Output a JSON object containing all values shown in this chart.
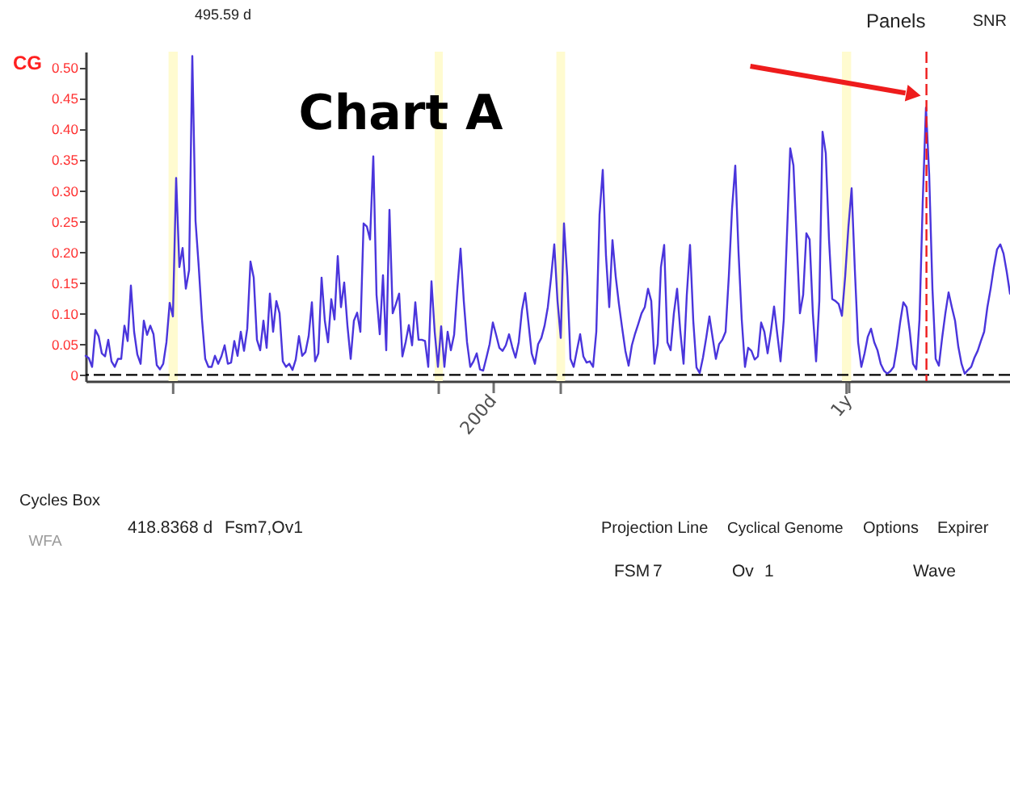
{
  "chart_data": {
    "type": "line",
    "title": "Chart A",
    "categories": [
      null,
      null,
      null,
      null,
      null,
      null,
      null,
      null,
      null,
      null,
      null,
      null,
      null,
      null,
      null,
      null,
      null,
      null,
      null,
      null,
      null,
      null,
      null,
      null,
      null,
      null,
      null,
      null,
      null,
      null,
      null,
      null,
      null,
      null,
      null,
      null,
      null,
      null,
      null,
      null,
      null,
      null,
      null,
      null,
      null,
      null,
      null,
      null,
      null,
      null,
      null,
      null,
      null,
      null,
      null,
      null,
      null,
      null,
      null,
      null,
      null,
      null,
      null,
      null,
      null,
      null,
      null,
      null,
      null,
      null,
      null,
      null,
      null,
      null,
      null,
      null,
      null,
      null,
      null,
      null,
      null,
      null,
      null,
      null,
      null,
      null,
      null,
      null,
      null,
      null,
      null,
      null,
      null,
      null,
      null,
      null,
      null,
      null,
      null,
      null,
      null,
      null,
      null,
      null,
      null,
      null,
      null,
      null,
      null,
      null,
      null,
      null,
      null,
      null,
      null,
      null,
      null,
      null,
      null,
      null,
      null,
      null,
      null,
      null,
      null,
      null,
      "200d",
      null,
      null,
      null,
      null,
      null,
      null,
      null,
      null,
      null,
      null,
      null,
      null,
      null,
      null,
      null,
      null,
      null,
      null,
      null,
      null,
      null,
      null,
      null,
      null,
      null,
      null,
      null,
      null,
      null,
      null,
      null,
      null,
      null,
      null,
      null,
      null,
      null,
      null,
      null,
      null,
      null,
      null,
      null,
      null,
      null,
      null,
      null,
      null,
      null,
      null,
      null,
      null,
      null,
      null,
      null,
      null,
      null,
      null,
      null,
      null,
      null,
      null,
      null,
      null,
      null,
      null,
      null,
      null,
      null,
      null,
      null,
      null,
      null,
      null,
      null,
      null,
      null,
      null,
      null,
      null,
      null,
      null,
      null,
      null,
      null,
      null,
      null,
      null,
      null,
      null,
      null,
      null,
      null,
      null,
      null,
      null,
      null,
      null,
      null,
      null,
      null,
      null,
      null,
      null,
      null,
      null,
      null,
      null,
      null,
      "1y",
      null,
      null,
      null,
      null,
      null,
      null,
      null,
      null,
      null,
      null,
      null,
      null,
      null,
      null,
      null,
      null,
      null,
      null,
      null,
      null,
      null,
      null,
      null,
      null,
      null,
      null,
      null,
      null,
      null,
      null,
      null,
      null,
      null,
      null,
      null,
      null,
      null,
      null,
      null,
      null,
      null,
      null,
      null,
      null,
      null,
      null,
      null,
      null,
      null,
      null
    ],
    "series": [
      {
        "color": "#4a35dc",
        "values": [
          0.031,
          0.027,
          0.013,
          0.073,
          0.063,
          0.035,
          0.03,
          0.057,
          0.022,
          0.013,
          0.026,
          0.026,
          0.08,
          0.055,
          0.145,
          0.07,
          0.033,
          0.018,
          0.088,
          0.065,
          0.08,
          0.066,
          0.016,
          0.009,
          0.018,
          0.053,
          0.117,
          0.095,
          0.32,
          0.175,
          0.206,
          0.14,
          0.17,
          0.518,
          0.25,
          0.175,
          0.09,
          0.026,
          0.013,
          0.013,
          0.031,
          0.018,
          0.03,
          0.048,
          0.018,
          0.02,
          0.055,
          0.031,
          0.07,
          0.039,
          0.075,
          0.184,
          0.158,
          0.057,
          0.04,
          0.088,
          0.044,
          0.132,
          0.07,
          0.12,
          0.1,
          0.022,
          0.013,
          0.018,
          0.008,
          0.025,
          0.063,
          0.031,
          0.037,
          0.063,
          0.118,
          0.022,
          0.035,
          0.158,
          0.088,
          0.053,
          0.123,
          0.09,
          0.193,
          0.11,
          0.15,
          0.08,
          0.026,
          0.088,
          0.101,
          0.07,
          0.246,
          0.241,
          0.22,
          0.355,
          0.13,
          0.066,
          0.162,
          0.04,
          0.268,
          0.1,
          0.115,
          0.132,
          0.03,
          0.053,
          0.081,
          0.048,
          0.118,
          0.057,
          0.057,
          0.055,
          0.013,
          0.152,
          0.07,
          0.013,
          0.079,
          0.013,
          0.07,
          0.04,
          0.065,
          0.14,
          0.205,
          0.12,
          0.053,
          0.013,
          0.022,
          0.035,
          0.009,
          0.007,
          0.028,
          0.05,
          0.085,
          0.065,
          0.044,
          0.039,
          0.048,
          0.066,
          0.045,
          0.028,
          0.053,
          0.105,
          0.133,
          0.085,
          0.035,
          0.018,
          0.05,
          0.06,
          0.08,
          0.11,
          0.158,
          0.212,
          0.12,
          0.06,
          0.246,
          0.16,
          0.026,
          0.013,
          0.04,
          0.066,
          0.03,
          0.02,
          0.022,
          0.013,
          0.07,
          0.26,
          0.333,
          0.193,
          0.11,
          0.219,
          0.16,
          0.115,
          0.076,
          0.039,
          0.015,
          0.048,
          0.067,
          0.083,
          0.1,
          0.11,
          0.14,
          0.12,
          0.018,
          0.05,
          0.175,
          0.211,
          0.053,
          0.04,
          0.1,
          0.14,
          0.07,
          0.018,
          0.13,
          0.211,
          0.088,
          0.012,
          0.003,
          0.028,
          0.06,
          0.095,
          0.06,
          0.026,
          0.05,
          0.057,
          0.07,
          0.16,
          0.27,
          0.34,
          0.2,
          0.09,
          0.013,
          0.044,
          0.039,
          0.025,
          0.03,
          0.085,
          0.07,
          0.035,
          0.07,
          0.111,
          0.066,
          0.022,
          0.09,
          0.228,
          0.368,
          0.34,
          0.22,
          0.1,
          0.13,
          0.23,
          0.22,
          0.1,
          0.022,
          0.12,
          0.395,
          0.36,
          0.22,
          0.123,
          0.12,
          0.115,
          0.096,
          0.16,
          0.24,
          0.303,
          0.17,
          0.053,
          0.013,
          0.035,
          0.062,
          0.075,
          0.053,
          0.04,
          0.018,
          0.007,
          0.002,
          0.006,
          0.013,
          0.045,
          0.085,
          0.118,
          0.11,
          0.07,
          0.018,
          0.009,
          0.09,
          0.281,
          0.434,
          0.325,
          0.14,
          0.026,
          0.015,
          0.06,
          0.1,
          0.134,
          0.11,
          0.088,
          0.046,
          0.018,
          0.002,
          0.008,
          0.013,
          0.028,
          0.039,
          0.055,
          0.07,
          0.11,
          0.14,
          0.175,
          0.204,
          0.212,
          0.197,
          0.167,
          0.132
        ]
      }
    ],
    "ylim": [
      -0.01,
      0.525
    ],
    "yticks": [
      0,
      0.05,
      {
        "value": 0.1,
        "label": "0.10"
      },
      0.15,
      {
        "value": 0.2,
        "label": "0.20"
      },
      0.25,
      {
        "value": 0.3,
        "label": "0.30"
      },
      0.35,
      {
        "value": 0.4,
        "label": "0.40"
      },
      0.45,
      {
        "value": 0.5,
        "label": "0.50"
      }
    ],
    "grid": false,
    "ref_lines": [
      {
        "axis": "y",
        "value": 0,
        "color": "#000000",
        "line_style": "dashed"
      }
    ],
    "annotations": [
      "495.59 d",
      "Panels",
      "SNR",
      "CG",
      "Cycles Box",
      "WFA",
      "418.8368 d",
      "Fsm7,Ov1",
      "Projection Line",
      "Cyclical Genome",
      "Options",
      "Expirer",
      "FSM",
      "7",
      "Ov",
      "1",
      "Wave"
    ]
  }
}
